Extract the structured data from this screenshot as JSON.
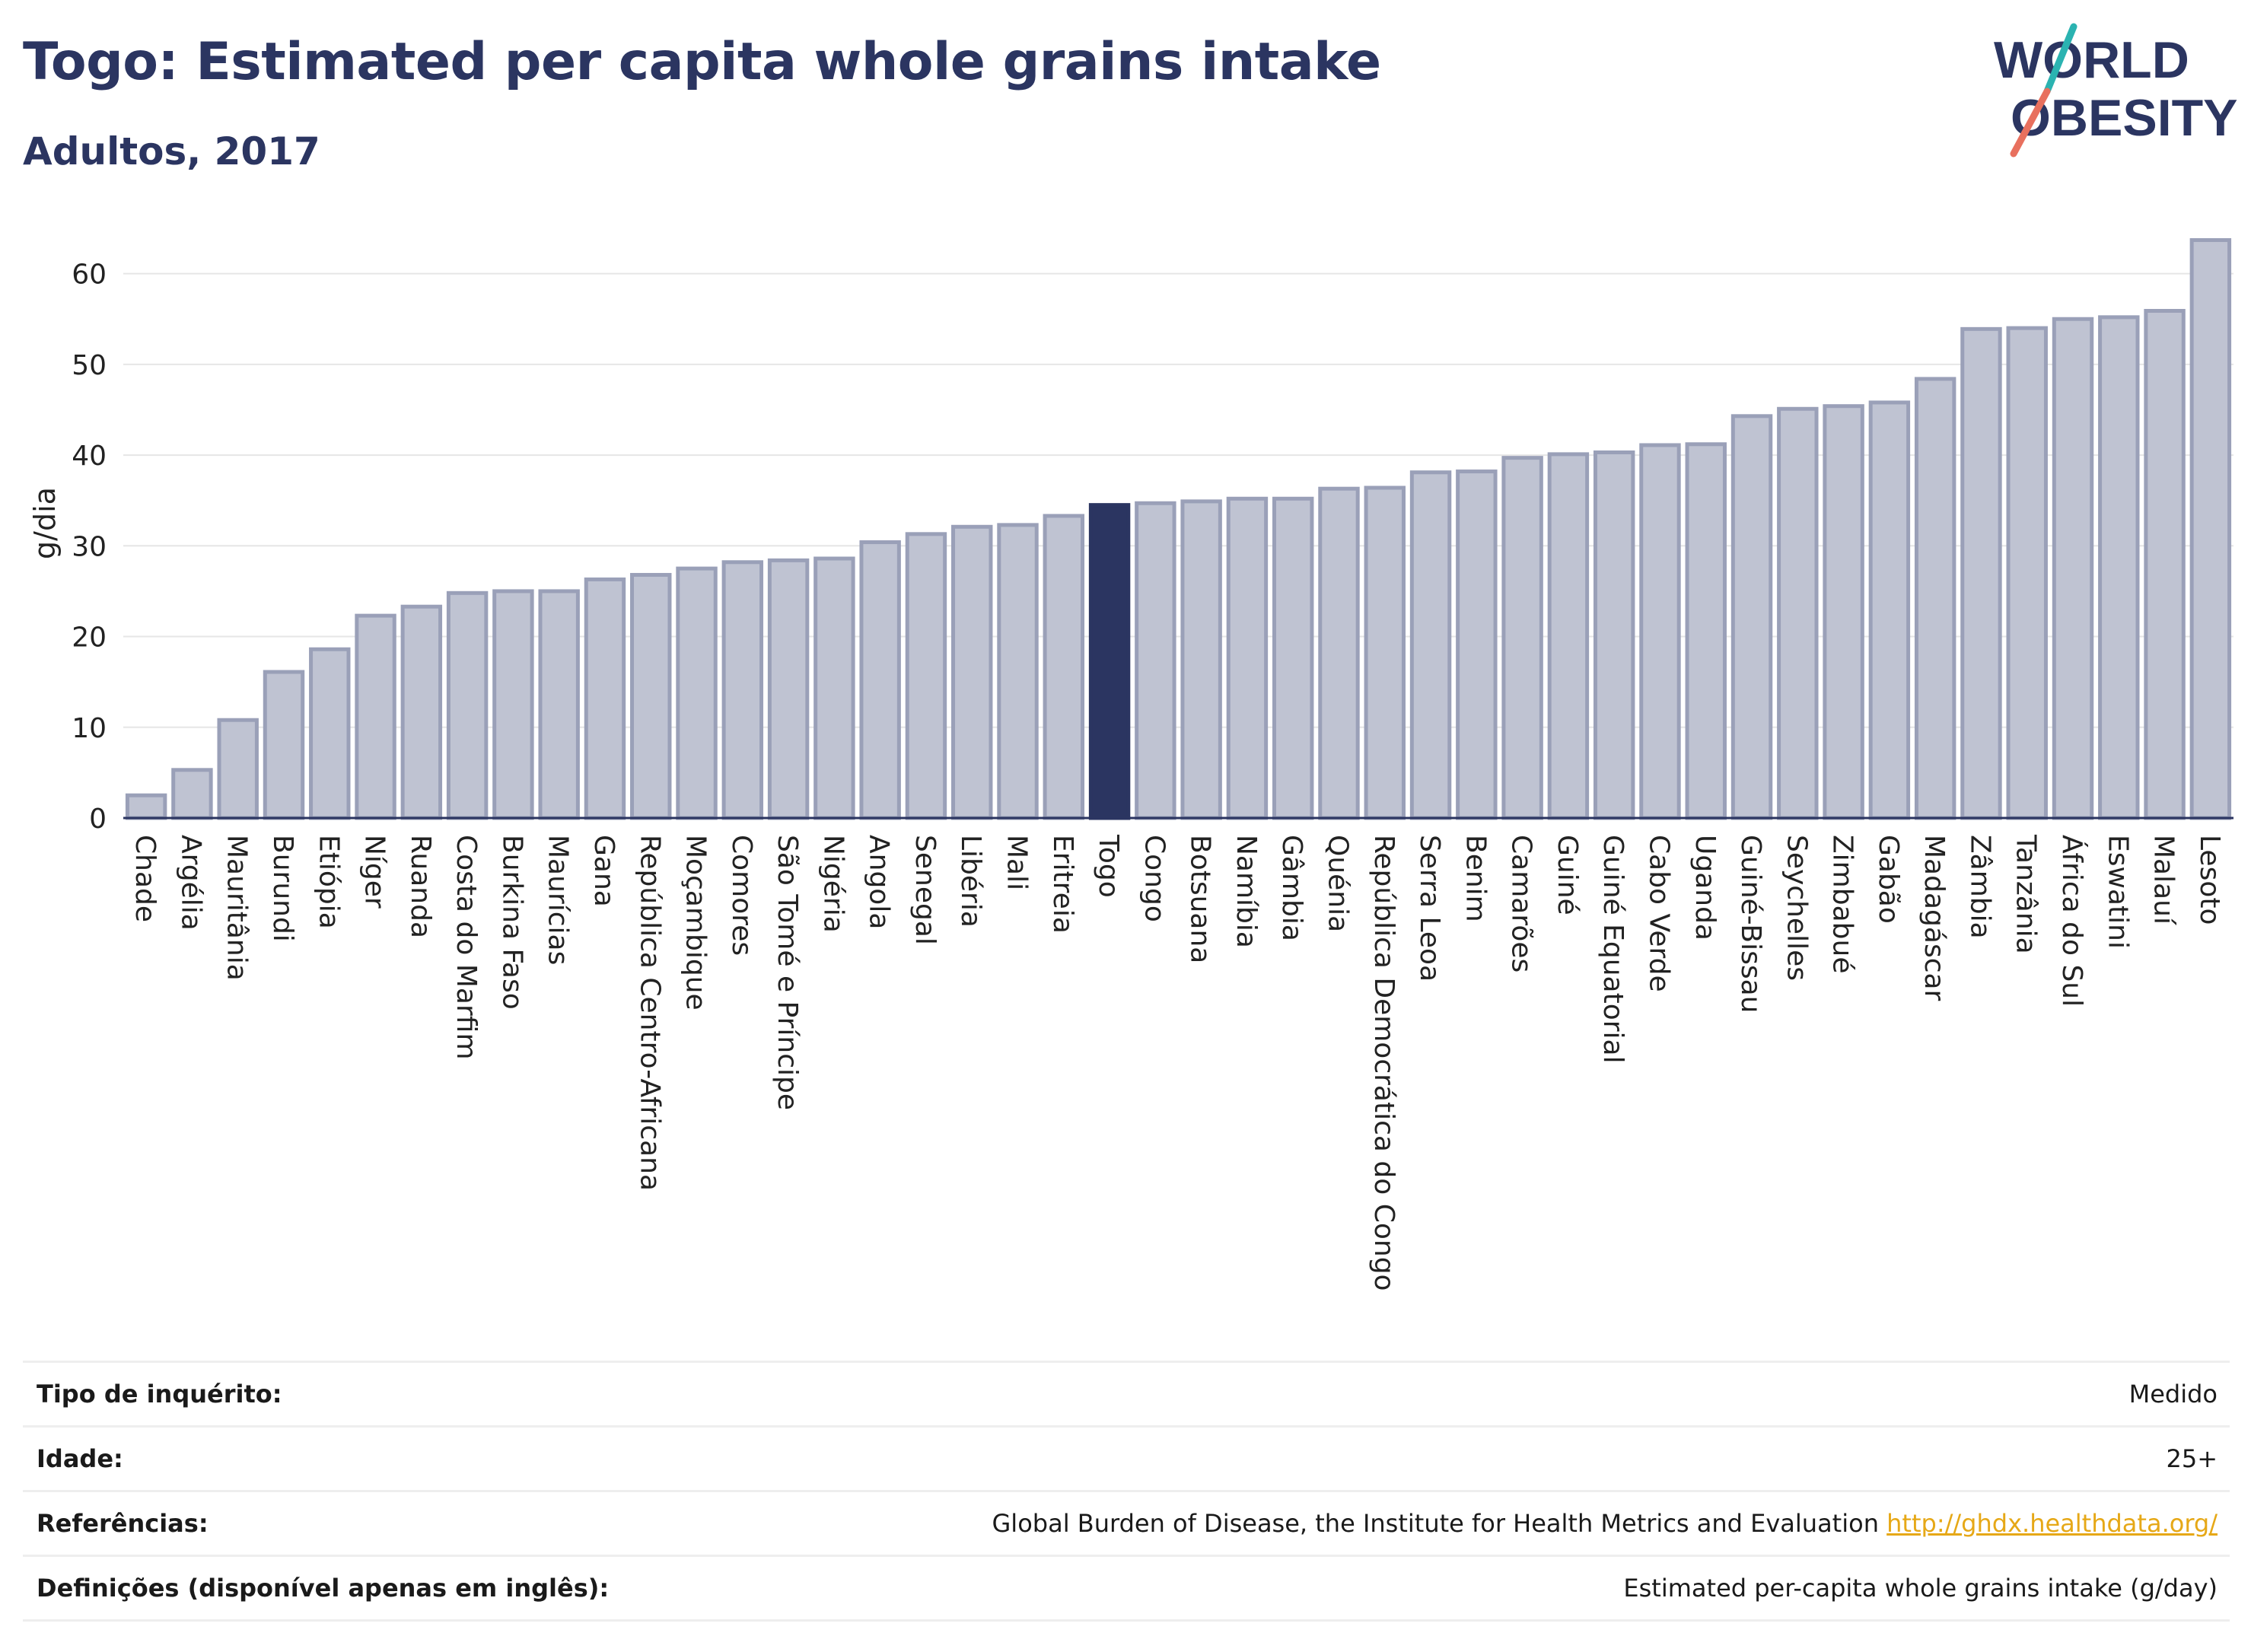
{
  "header": {
    "title": "Togo: Estimated per capita whole grains intake",
    "subtitle": "Adultos, 2017"
  },
  "logo": {
    "line1": "WORLD",
    "line2": "OBESITY",
    "colors": {
      "text": "#2b3561",
      "slash_top": "#2bb3b1",
      "slash_bottom": "#e8705e"
    }
  },
  "chart_data": {
    "type": "bar",
    "ylabel": "g/dia",
    "ylim": [
      0,
      65
    ],
    "yticks": [
      0,
      10,
      20,
      30,
      40,
      50,
      60
    ],
    "grid": true,
    "highlight": "Togo",
    "colors": {
      "bar": "#bfc3d2",
      "bar_border": "#9aa0b8",
      "highlight": "#2b3561"
    },
    "categories": [
      "Chade",
      "Argélia",
      "Mauritânia",
      "Burundi",
      "Etiópia",
      "Níger",
      "Ruanda",
      "Costa do Marfim",
      "Burkina Faso",
      "Maurícias",
      "Gana",
      "República Centro-Africana",
      "Moçambique",
      "Comores",
      "São Tomé e Príncipe",
      "Nigéria",
      "Angola",
      "Senegal",
      "Libéria",
      "Mali",
      "Eritreia",
      "Togo",
      "Congo",
      "Botsuana",
      "Namíbia",
      "Gâmbia",
      "Quénia",
      "República Democrática do Congo",
      "Serra Leoa",
      "Benim",
      "Camarões",
      "Guiné",
      "Guiné Equatorial",
      "Cabo Verde",
      "Uganda",
      "Guiné-Bissau",
      "Seychelles",
      "Zimbabué",
      "Gabão",
      "Madagáscar",
      "Zâmbia",
      "Tanzânia",
      "África do Sul",
      "Eswatini",
      "Malauí",
      "Lesoto"
    ],
    "values": [
      2.5,
      5.3,
      10.8,
      16.1,
      18.6,
      22.3,
      23.3,
      24.8,
      25.0,
      25.0,
      26.3,
      26.8,
      27.5,
      28.2,
      28.4,
      28.6,
      30.4,
      31.3,
      32.1,
      32.3,
      33.3,
      34.5,
      34.7,
      34.9,
      35.2,
      35.2,
      36.3,
      36.4,
      38.1,
      38.2,
      39.7,
      40.1,
      40.3,
      41.1,
      41.2,
      44.3,
      45.1,
      45.4,
      45.8,
      48.4,
      53.9,
      54.0,
      55.0,
      55.2,
      55.9,
      63.7
    ]
  },
  "info": {
    "rows": [
      {
        "label": "Tipo de inquérito:",
        "value": "Medido"
      },
      {
        "label": "Idade:",
        "value": "25+"
      },
      {
        "label": "Referências:",
        "value": "Global Burden of Disease, the Institute for Health Metrics and Evaluation",
        "link": "http://ghdx.healthdata.org/"
      },
      {
        "label": "Definições (disponível apenas em inglês):",
        "value": "Estimated per-capita whole grains intake (g/day)"
      }
    ]
  }
}
